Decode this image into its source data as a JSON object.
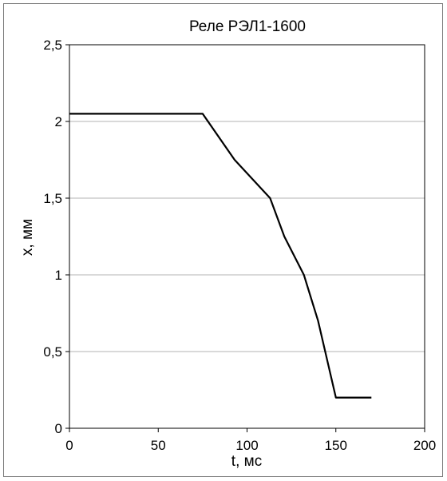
{
  "chart_data": {
    "type": "line",
    "title": "Реле РЭЛ1-1600",
    "xlabel": "t, мс",
    "ylabel": "x, мм",
    "xlim": [
      0,
      200
    ],
    "ylim": [
      0,
      2.5
    ],
    "x_ticks": [
      "0",
      "50",
      "100",
      "150",
      "200"
    ],
    "y_ticks": [
      "0",
      "0,5",
      "1",
      "1,5",
      "2",
      "2,5"
    ],
    "grid": "horizontal",
    "legend": "none",
    "series": [
      {
        "x": [
          0,
          75,
          93,
          113,
          121,
          132,
          140,
          150,
          170
        ],
        "y": [
          2.05,
          2.05,
          1.75,
          1.5,
          1.25,
          1.0,
          0.7,
          0.2,
          0.2
        ],
        "color": "#000000"
      }
    ]
  }
}
